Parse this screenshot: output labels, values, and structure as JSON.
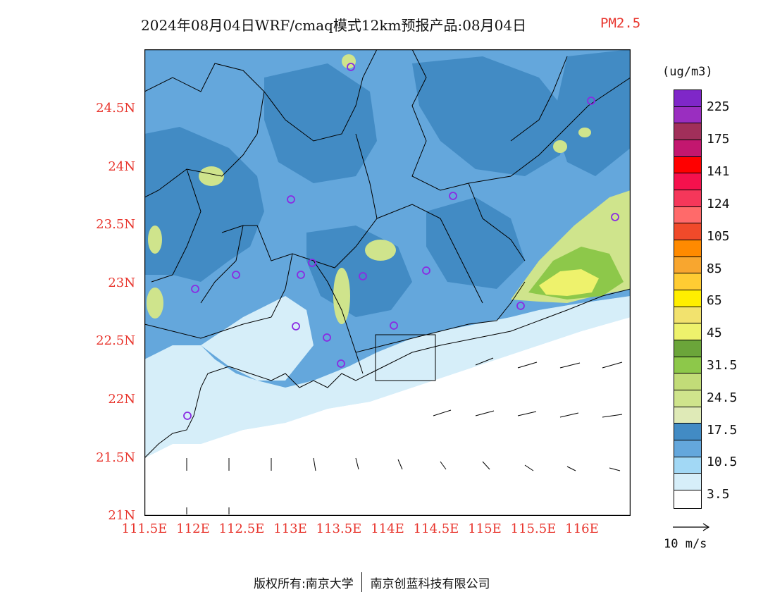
{
  "title": {
    "main": "2024年08月04日WRF/cmaq模式12km预报产品:08月04日",
    "variable": "PM2.5"
  },
  "latitude_labels": [
    "24.5N",
    "24N",
    "23.5N",
    "23N",
    "22.5N",
    "22N",
    "21.5N",
    "21N"
  ],
  "longitude_labels": [
    "111.5E",
    "112E",
    "112.5E",
    "113E",
    "113.5E",
    "114E",
    "114.5E",
    "115E",
    "115.5E",
    "116E"
  ],
  "legend": {
    "unit": "(ug/m3)",
    "labels": [
      "225",
      "175",
      "141",
      "124",
      "105",
      "85",
      "65",
      "45",
      "31.5",
      "24.5",
      "17.5",
      "10.5",
      "3.5"
    ],
    "colors_top_to_bottom": [
      "#7f27c8",
      "#9a2ec0",
      "#a12f5a",
      "#c3176f",
      "#ff0000",
      "#f5114d",
      "#f5375a",
      "#ff6a6a",
      "#f04a2a",
      "#ff8a00",
      "#f8a62f",
      "#ffcc33",
      "#ffee00",
      "#f2e26e",
      "#eef26c",
      "#6ba53a",
      "#8dc84a",
      "#c2dc78",
      "#cfe48c",
      "#dfeab7",
      "#428bc4",
      "#64a7dc",
      "#a2d8f5",
      "#d6eef9",
      "#ffffff"
    ]
  },
  "wind_reference": "10 m/s",
  "footer": {
    "left": "版权所有:南京大学",
    "right": "南京创蓝科技有限公司"
  },
  "map_colors": {
    "open_sea": "#ffffff",
    "band_3_5": "#d6eef9",
    "band_10_5": "#a2d8f5",
    "band_17_5_light": "#64a7dc",
    "band_17_5_dark": "#428bc4",
    "band_24_5": "#cfe48c",
    "band_31_5": "#8dc84a",
    "band_45": "#eef26c",
    "station_marker": "#8a2be2"
  }
}
